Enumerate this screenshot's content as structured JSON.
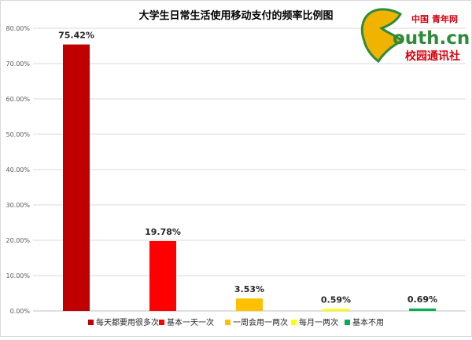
{
  "chart_data": {
    "type": "bar",
    "title": "大学生日常生活使用移动支付的频率比例图",
    "categories": [
      "每天都要用很多次",
      "基本一天一次",
      "一周会用一两次",
      "每月一两次",
      "基本不用"
    ],
    "values": [
      75.42,
      19.78,
      3.53,
      0.59,
      0.69
    ],
    "value_labels": [
      "75.42%",
      "19.78%",
      "3.53%",
      "0.59%",
      "0.69%"
    ],
    "colors": [
      "#c00000",
      "#ff0000",
      "#ffc000",
      "#ffff00",
      "#00b050"
    ],
    "ylim": [
      0,
      80
    ],
    "yticks": [
      0,
      10,
      20,
      30,
      40,
      50,
      60,
      70,
      80
    ],
    "ytick_labels": [
      "0.00%",
      "10.00%",
      "20.00%",
      "30.00%",
      "40.00%",
      "50.00%",
      "60.00%",
      "70.00%",
      "80.00%"
    ],
    "xlabel": "",
    "ylabel": "",
    "grid": true,
    "legend_position": "bottom"
  },
  "logo": {
    "cn_text": "中国",
    "cn_text2": "青年网",
    "main_text": "outh.cn",
    "sub_text": "校园通讯社",
    "colors": {
      "red": "#d7000f",
      "green": "#2e8b3a",
      "leaf": "#f0b400"
    }
  }
}
